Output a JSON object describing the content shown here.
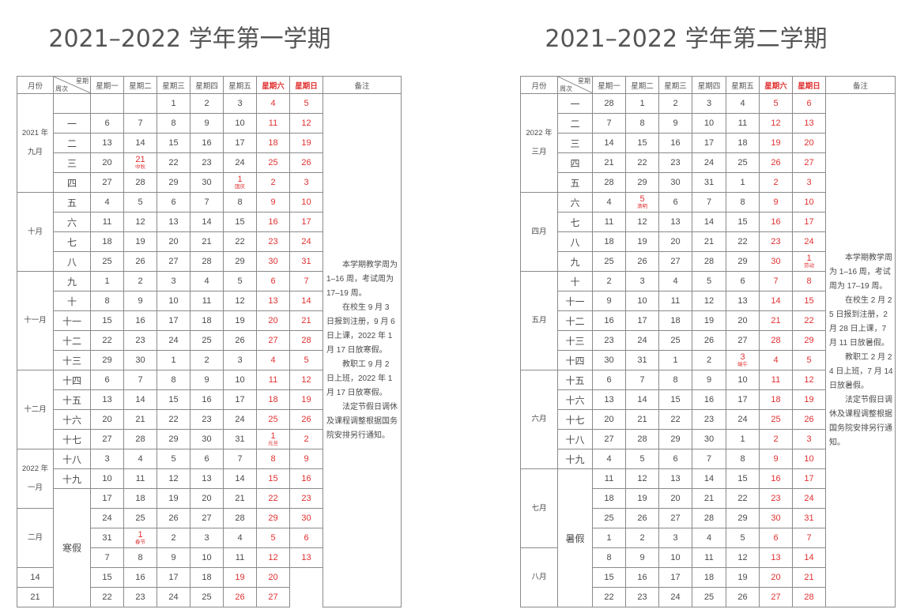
{
  "sem1": {
    "title": "2021–2022 学年第一学期",
    "note": [
      "本学期教学周为 1–16 周，考试周为 17–19 周。",
      "在校生 9 月 3 日报到注册，9 月 6 日上课，2022 年 1 月 17 日放寒假。",
      "教职工 9 月 2 日上班，2022 年 1 月 17 日放寒假。",
      "法定节假日调休及课程调整根据国务院安排另行通知。"
    ],
    "months": [
      "2021 年\n九月",
      "十月",
      "十一月",
      "十二月",
      "2022 年\n一月",
      "二月"
    ],
    "month_spans": [
      5,
      4,
      5,
      4,
      3,
      3
    ],
    "vacation": "寒假",
    "vacation_start_row": 20,
    "weeks": [
      "",
      "一",
      "二",
      "三",
      "四",
      "五",
      "六",
      "七",
      "八",
      "九",
      "十",
      "十一",
      "十二",
      "十三",
      "十四",
      "十五",
      "十六",
      "十七",
      "十八",
      "十九"
    ],
    "rows": [
      [
        "",
        "",
        "1",
        "2",
        "3",
        "4",
        "5"
      ],
      [
        "6",
        "7",
        "8",
        "9",
        "10",
        "11",
        "12"
      ],
      [
        "13",
        "14",
        "15",
        "16",
        "17",
        "18",
        "19"
      ],
      [
        "20",
        "21|中秋",
        "22",
        "23",
        "24",
        "25",
        "26"
      ],
      [
        "27",
        "28",
        "29",
        "30",
        "1|国庆",
        "2",
        "3"
      ],
      [
        "4",
        "5",
        "6",
        "7",
        "8",
        "9",
        "10"
      ],
      [
        "11",
        "12",
        "13",
        "14",
        "15",
        "16",
        "17"
      ],
      [
        "18",
        "19",
        "20",
        "21",
        "22",
        "23",
        "24"
      ],
      [
        "25",
        "26",
        "27",
        "28",
        "29",
        "30",
        "31"
      ],
      [
        "1",
        "2",
        "3",
        "4",
        "5",
        "6",
        "7"
      ],
      [
        "8",
        "9",
        "10",
        "11",
        "12",
        "13",
        "14"
      ],
      [
        "15",
        "16",
        "17",
        "18",
        "19",
        "20",
        "21"
      ],
      [
        "22",
        "23",
        "24",
        "25",
        "26",
        "27",
        "28"
      ],
      [
        "29",
        "30",
        "1",
        "2",
        "3",
        "4",
        "5"
      ],
      [
        "6",
        "7",
        "8",
        "9",
        "10",
        "11",
        "12"
      ],
      [
        "13",
        "14",
        "15",
        "16",
        "17",
        "18",
        "19"
      ],
      [
        "20",
        "21",
        "22",
        "23",
        "24",
        "25",
        "26"
      ],
      [
        "27",
        "28",
        "29",
        "30",
        "31",
        "1|元旦",
        "2"
      ],
      [
        "3",
        "4",
        "5",
        "6",
        "7",
        "8",
        "9"
      ],
      [
        "10",
        "11",
        "12",
        "13",
        "14",
        "15",
        "16"
      ],
      [
        "17",
        "18",
        "19",
        "20",
        "21",
        "22",
        "23"
      ],
      [
        "24",
        "25",
        "26",
        "27",
        "28",
        "29",
        "30"
      ],
      [
        "31",
        "1|春节",
        "2",
        "3",
        "4",
        "5",
        "6"
      ],
      [
        "7",
        "8",
        "9",
        "10",
        "11",
        "12",
        "13"
      ],
      [
        "14",
        "15",
        "16",
        "17",
        "18",
        "19",
        "20"
      ],
      [
        "21",
        "22",
        "23",
        "24",
        "25",
        "26",
        "27"
      ]
    ]
  },
  "sem2": {
    "title": "2021–2022 学年第二学期",
    "note": [
      "本学期教学周为 1–16 周，考试周为 17–19 周。",
      "在校生 2 月 25 日报到注册，2 月 28 日上课，7 月 11 日放暑假。",
      "教职工 2 月 24 日上班，7 月 14 日放暑假。",
      "法定节假日调休及课程调整根据国务院安排另行通知。"
    ],
    "months": [
      "2022 年\n三月",
      "四月",
      "五月",
      "六月",
      "七月",
      "八月"
    ],
    "month_spans": [
      5,
      4,
      5,
      5,
      4,
      4
    ],
    "vacation": "暑假",
    "vacation_start_row": 19,
    "weeks": [
      "一",
      "二",
      "三",
      "四",
      "五",
      "六",
      "七",
      "八",
      "九",
      "十",
      "十一",
      "十二",
      "十三",
      "十四",
      "十五",
      "十六",
      "十七",
      "十八",
      "十九"
    ],
    "rows": [
      [
        "28",
        "1",
        "2",
        "3",
        "4",
        "5",
        "6"
      ],
      [
        "7",
        "8",
        "9",
        "10",
        "11",
        "12",
        "13"
      ],
      [
        "14",
        "15",
        "16",
        "17",
        "18",
        "19",
        "20"
      ],
      [
        "21",
        "22",
        "23",
        "24",
        "25",
        "26",
        "27"
      ],
      [
        "28",
        "29",
        "30",
        "31",
        "1",
        "2",
        "3"
      ],
      [
        "4",
        "5|清明",
        "6",
        "7",
        "8",
        "9",
        "10"
      ],
      [
        "11",
        "12",
        "13",
        "14",
        "15",
        "16",
        "17"
      ],
      [
        "18",
        "19",
        "20",
        "21",
        "22",
        "23",
        "24"
      ],
      [
        "25",
        "26",
        "27",
        "28",
        "29",
        "30",
        "1|劳动"
      ],
      [
        "2",
        "3",
        "4",
        "5",
        "6",
        "7",
        "8"
      ],
      [
        "9",
        "10",
        "11",
        "12",
        "13",
        "14",
        "15"
      ],
      [
        "16",
        "17",
        "18",
        "19",
        "20",
        "21",
        "22"
      ],
      [
        "23",
        "24",
        "25",
        "26",
        "27",
        "28",
        "29"
      ],
      [
        "30",
        "31",
        "1",
        "2",
        "3|端午",
        "4",
        "5"
      ],
      [
        "6",
        "7",
        "8",
        "9",
        "10",
        "11",
        "12"
      ],
      [
        "13",
        "14",
        "15",
        "16",
        "17",
        "18",
        "19"
      ],
      [
        "20",
        "21",
        "22",
        "23",
        "24",
        "25",
        "26"
      ],
      [
        "27",
        "28",
        "29",
        "30",
        "1",
        "2",
        "3"
      ],
      [
        "4",
        "5",
        "6",
        "7",
        "8",
        "9",
        "10"
      ],
      [
        "11",
        "12",
        "13",
        "14",
        "15",
        "16",
        "17"
      ],
      [
        "18",
        "19",
        "20",
        "21",
        "22",
        "23",
        "24"
      ],
      [
        "25",
        "26",
        "27",
        "28",
        "29",
        "30",
        "31"
      ],
      [
        "1",
        "2",
        "3",
        "4",
        "5",
        "6",
        "7"
      ],
      [
        "8",
        "9",
        "10",
        "11",
        "12",
        "13",
        "14"
      ],
      [
        "15",
        "16",
        "17",
        "18",
        "19",
        "20",
        "21"
      ],
      [
        "22",
        "23",
        "24",
        "25",
        "26",
        "27",
        "28"
      ]
    ]
  },
  "header": {
    "month": "月份",
    "week_label": "星期",
    "cycle_label": "周次",
    "days": [
      "星期一",
      "星期二",
      "星期三",
      "星期四",
      "星期五",
      "星期六",
      "星期日"
    ],
    "note": "备注"
  },
  "colors": {
    "weekend": "#e03030",
    "border": "#8a8a8a",
    "text": "#4a4a4a"
  }
}
